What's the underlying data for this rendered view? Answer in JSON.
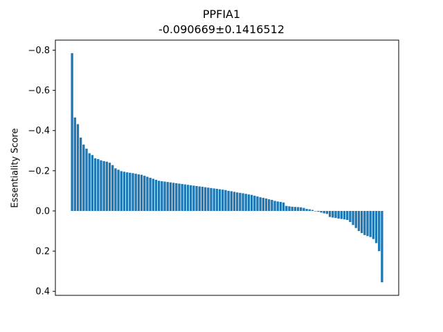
{
  "chart_data": {
    "type": "bar",
    "title": "PPFIA1",
    "subtitle": "-0.090669±0.1416512",
    "xlabel": "",
    "ylabel": "Essentiality Score",
    "y_inverted": true,
    "ylim": [
      -0.85,
      0.42
    ],
    "yticks": [
      -0.8,
      -0.6,
      -0.4,
      -0.2,
      0.0,
      0.2,
      0.4
    ],
    "ytick_labels": [
      "−0.8",
      "−0.6",
      "−0.4",
      "−0.2",
      "0.0",
      "0.2",
      "0.4"
    ],
    "bar_color": "#1f77b4",
    "values": [
      -0.785,
      -0.465,
      -0.432,
      -0.365,
      -0.33,
      -0.31,
      -0.287,
      -0.278,
      -0.262,
      -0.258,
      -0.252,
      -0.248,
      -0.245,
      -0.24,
      -0.228,
      -0.212,
      -0.205,
      -0.198,
      -0.195,
      -0.192,
      -0.19,
      -0.188,
      -0.185,
      -0.182,
      -0.18,
      -0.175,
      -0.17,
      -0.165,
      -0.16,
      -0.155,
      -0.15,
      -0.148,
      -0.146,
      -0.144,
      -0.142,
      -0.14,
      -0.138,
      -0.136,
      -0.134,
      -0.132,
      -0.13,
      -0.128,
      -0.126,
      -0.124,
      -0.122,
      -0.12,
      -0.118,
      -0.116,
      -0.114,
      -0.112,
      -0.11,
      -0.108,
      -0.106,
      -0.104,
      -0.1,
      -0.098,
      -0.095,
      -0.092,
      -0.09,
      -0.088,
      -0.085,
      -0.082,
      -0.08,
      -0.076,
      -0.072,
      -0.068,
      -0.065,
      -0.062,
      -0.058,
      -0.055,
      -0.05,
      -0.047,
      -0.045,
      -0.042,
      -0.025,
      -0.023,
      -0.021,
      -0.02,
      -0.019,
      -0.018,
      -0.015,
      -0.01,
      -0.008,
      -0.005,
      0.0,
      0.004,
      0.008,
      0.012,
      0.015,
      0.03,
      0.033,
      0.035,
      0.038,
      0.04,
      0.042,
      0.045,
      0.055,
      0.07,
      0.085,
      0.1,
      0.11,
      0.12,
      0.125,
      0.13,
      0.14,
      0.16,
      0.2,
      0.355
    ]
  }
}
